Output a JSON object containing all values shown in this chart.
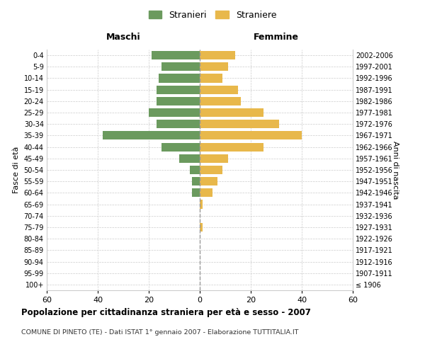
{
  "age_groups": [
    "100+",
    "95-99",
    "90-94",
    "85-89",
    "80-84",
    "75-79",
    "70-74",
    "65-69",
    "60-64",
    "55-59",
    "50-54",
    "45-49",
    "40-44",
    "35-39",
    "30-34",
    "25-29",
    "20-24",
    "15-19",
    "10-14",
    "5-9",
    "0-4"
  ],
  "birth_years": [
    "≤ 1906",
    "1907-1911",
    "1912-1916",
    "1917-1921",
    "1922-1926",
    "1927-1931",
    "1932-1936",
    "1937-1941",
    "1942-1946",
    "1947-1951",
    "1952-1956",
    "1957-1961",
    "1962-1966",
    "1967-1971",
    "1972-1976",
    "1977-1981",
    "1982-1986",
    "1987-1991",
    "1992-1996",
    "1997-2001",
    "2002-2006"
  ],
  "maschi": [
    0,
    0,
    0,
    0,
    0,
    0,
    0,
    0,
    3,
    3,
    4,
    8,
    15,
    38,
    17,
    20,
    17,
    17,
    16,
    15,
    19
  ],
  "femmine": [
    0,
    0,
    0,
    0,
    0,
    1,
    0,
    1,
    5,
    7,
    9,
    11,
    25,
    40,
    31,
    25,
    16,
    15,
    9,
    11,
    14
  ],
  "maschi_color": "#6b9a5e",
  "femmine_color": "#e8b84b",
  "title": "Popolazione per cittadinanza straniera per età e sesso - 2007",
  "subtitle": "COMUNE DI PINETO (TE) - Dati ISTAT 1° gennaio 2007 - Elaborazione TUTTITALIA.IT",
  "xlabel_left": "Maschi",
  "xlabel_right": "Femmine",
  "ylabel_left": "Fasce di età",
  "ylabel_right": "Anni di nascita",
  "legend_stranieri": "Stranieri",
  "legend_straniere": "Straniere",
  "xlim": 60,
  "background_color": "#ffffff",
  "grid_color": "#cccccc"
}
